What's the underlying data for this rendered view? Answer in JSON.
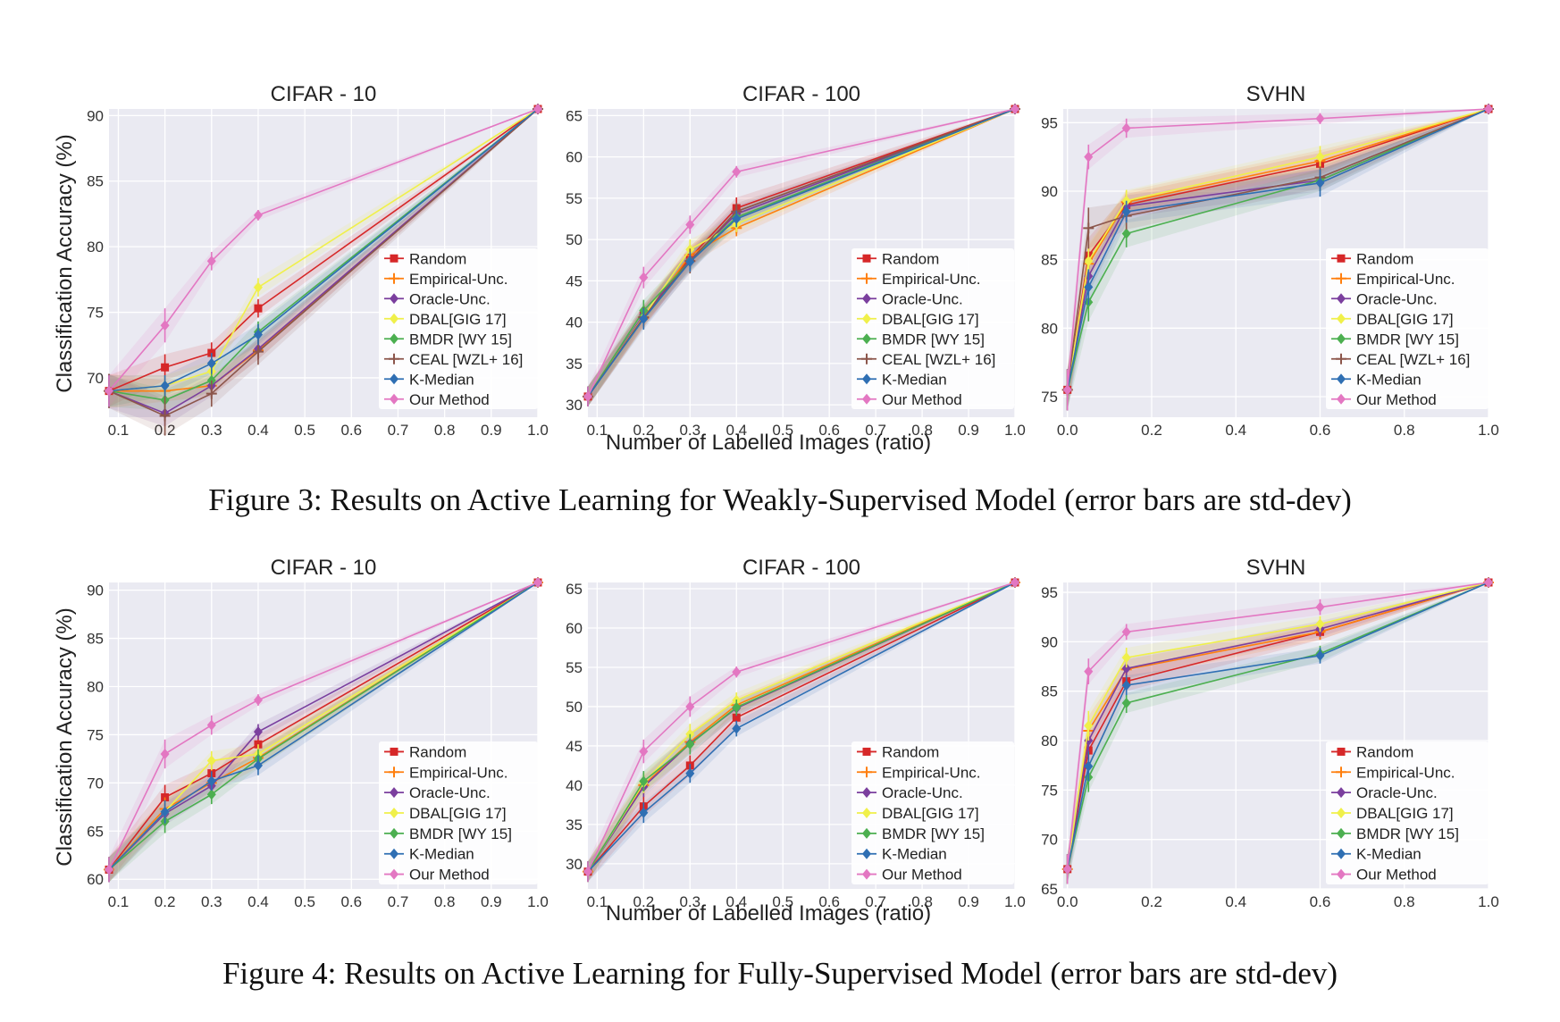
{
  "colors": {
    "Random": "#d62728",
    "Empirical-Unc.": "#ff7f0e",
    "Oracle-Unc.": "#7b3f9e",
    "DBAL[GIG 17]": "#f0f04a",
    "BMDR [WY 15]": "#4caf50",
    "CEAL [WZL+ 16]": "#8c564b",
    "K-Median": "#2f6fb3",
    "Our Method": "#e377c2"
  },
  "figures": [
    {
      "caption": "Figure 3: Results on Active Learning for Weakly-Supervised Model (error bars are std-dev)",
      "ylabel": "Classification Accuracy (%)",
      "xlabel": "Number of Labelled Images (ratio)"
    },
    {
      "caption": "Figure 4: Results on Active Learning for Fully-Supervised Model (error bars are std-dev)",
      "ylabel": "Classification Accuracy (%)",
      "xlabel": "Number of Labelled Images (ratio)"
    }
  ],
  "chart_data": [
    {
      "type": "line",
      "figure": "Figure 3",
      "title": "CIFAR - 10",
      "xlim": [
        0.08,
        1.0
      ],
      "ylim": [
        67,
        90.5
      ],
      "xticks": [
        0.1,
        0.2,
        0.3,
        0.4,
        0.5,
        0.6,
        0.7,
        0.8,
        0.9,
        1.0
      ],
      "yticks": [
        70,
        75,
        80,
        85,
        90
      ],
      "x": [
        0.08,
        0.2,
        0.3,
        0.4,
        1.0
      ],
      "legend": "center-right",
      "series": [
        {
          "name": "Random",
          "values": [
            69,
            70.8,
            71.9,
            75.3,
            90.5
          ],
          "err": [
            1.2,
            1.0,
            0.8,
            0.7,
            0
          ]
        },
        {
          "name": "Empirical-Unc.",
          "values": [
            69,
            69.0,
            69.4,
            72.1,
            90.5
          ],
          "err": [
            1.3,
            0.8,
            0.8,
            0.7,
            0
          ]
        },
        {
          "name": "Oracle-Unc.",
          "values": [
            69,
            67.3,
            69.4,
            72.2,
            90.5
          ],
          "err": [
            1.3,
            1.0,
            0.8,
            0.8,
            0
          ]
        },
        {
          "name": "DBAL[GIG 17]",
          "values": [
            69,
            69.4,
            70.5,
            76.9,
            90.5
          ],
          "err": [
            1.2,
            0.8,
            0.8,
            0.7,
            0
          ]
        },
        {
          "name": "BMDR [WY 15]",
          "values": [
            69,
            68.3,
            69.8,
            73.5,
            90.5
          ],
          "err": [
            1.2,
            0.8,
            0.8,
            0.8,
            0
          ]
        },
        {
          "name": "CEAL [WZL+ 16]",
          "values": [
            69,
            67.1,
            68.8,
            72.0,
            90.5
          ],
          "err": [
            1.3,
            1.5,
            1.0,
            1.0,
            0
          ]
        },
        {
          "name": "K-Median",
          "values": [
            69,
            69.4,
            71.1,
            73.3,
            90.5
          ],
          "err": [
            1.2,
            0.8,
            0.8,
            0.8,
            0
          ]
        },
        {
          "name": "Our Method",
          "values": [
            69,
            74.0,
            78.9,
            82.4,
            90.5
          ],
          "err": [
            1.2,
            1.3,
            0.7,
            0.4,
            0
          ]
        }
      ]
    },
    {
      "type": "line",
      "figure": "Figure 3",
      "title": "CIFAR - 100",
      "xlim": [
        0.08,
        1.0
      ],
      "ylim": [
        28.5,
        65.8
      ],
      "xticks": [
        0.1,
        0.2,
        0.3,
        0.4,
        0.5,
        0.6,
        0.7,
        0.8,
        0.9,
        1.0
      ],
      "yticks": [
        30,
        35,
        40,
        45,
        50,
        55,
        60,
        65
      ],
      "x": [
        0.08,
        0.2,
        0.3,
        0.4,
        1.0
      ],
      "legend": "bottom-right",
      "series": [
        {
          "name": "Random",
          "values": [
            31.0,
            40.8,
            47.8,
            53.8,
            65.8
          ],
          "err": [
            1.2,
            1.3,
            1.3,
            1.3,
            0
          ]
        },
        {
          "name": "Empirical-Unc.",
          "values": [
            31.0,
            40.5,
            48.1,
            51.4,
            65.8
          ],
          "err": [
            1.2,
            1.2,
            1.2,
            1.0,
            0
          ]
        },
        {
          "name": "Oracle-Unc.",
          "values": [
            31.0,
            40.9,
            47.5,
            53.1,
            65.8
          ],
          "err": [
            1.2,
            1.2,
            1.2,
            1.0,
            0
          ]
        },
        {
          "name": "DBAL[GIG 17]",
          "values": [
            31.0,
            40.7,
            48.8,
            51.9,
            65.8
          ],
          "err": [
            1.2,
            1.2,
            1.2,
            1.0,
            0
          ]
        },
        {
          "name": "BMDR [WY 15]",
          "values": [
            31.0,
            41.4,
            47.4,
            52.7,
            65.8
          ],
          "err": [
            1.2,
            1.3,
            1.2,
            1.0,
            0
          ]
        },
        {
          "name": "CEAL [WZL+ 16]",
          "values": [
            31.0,
            40.6,
            47.4,
            53.4,
            65.8
          ],
          "err": [
            1.2,
            1.2,
            1.5,
            1.0,
            0
          ]
        },
        {
          "name": "K-Median",
          "values": [
            31.0,
            40.4,
            47.3,
            52.5,
            65.8
          ],
          "err": [
            1.2,
            1.3,
            1.2,
            1.0,
            0
          ]
        },
        {
          "name": "Our Method",
          "values": [
            31.0,
            45.4,
            51.8,
            58.2,
            65.8
          ],
          "err": [
            1.2,
            1.3,
            1.1,
            0.7,
            0
          ]
        }
      ]
    },
    {
      "type": "line",
      "figure": "Figure 3",
      "title": "SVHN",
      "xlim": [
        -0.01,
        1.0
      ],
      "ylim": [
        73.5,
        96.0
      ],
      "xticks": [
        0.0,
        0.2,
        0.4,
        0.6,
        0.8,
        1.0
      ],
      "yticks": [
        75,
        80,
        85,
        90,
        95
      ],
      "x": [
        0.0,
        0.05,
        0.14,
        0.6,
        1.0
      ],
      "legend": "bottom-right",
      "series": [
        {
          "name": "Random",
          "values": [
            75.5,
            85.3,
            89.0,
            92.0,
            96.0
          ],
          "err": [
            1.5,
            1.3,
            0.8,
            0.8,
            0
          ]
        },
        {
          "name": "Empirical-Unc.",
          "values": [
            75.5,
            84.7,
            89.2,
            92.2,
            96.0
          ],
          "err": [
            1.5,
            1.3,
            0.8,
            0.8,
            0
          ]
        },
        {
          "name": "Oracle-Unc.",
          "values": [
            75.5,
            83.8,
            88.9,
            90.8,
            96.0
          ],
          "err": [
            1.5,
            1.3,
            0.8,
            0.8,
            0
          ]
        },
        {
          "name": "DBAL[GIG 17]",
          "values": [
            75.5,
            84.9,
            89.3,
            92.5,
            96.0
          ],
          "err": [
            1.5,
            1.3,
            0.8,
            0.8,
            0
          ]
        },
        {
          "name": "BMDR [WY 15]",
          "values": [
            75.5,
            81.9,
            86.9,
            90.8,
            96.0
          ],
          "err": [
            1.5,
            1.4,
            1.0,
            0.8,
            0
          ]
        },
        {
          "name": "CEAL [WZL+ 16]",
          "values": [
            75.5,
            87.3,
            88.2,
            91.0,
            96.0
          ],
          "err": [
            1.5,
            1.5,
            1.0,
            0.8,
            0
          ]
        },
        {
          "name": "K-Median",
          "values": [
            75.5,
            83.0,
            88.5,
            90.6,
            96.0
          ],
          "err": [
            1.5,
            1.3,
            0.8,
            1.0,
            0
          ]
        },
        {
          "name": "Our Method",
          "values": [
            75.5,
            92.5,
            94.6,
            95.3,
            96.0
          ],
          "err": [
            1.5,
            0.9,
            0.7,
            0.4,
            0
          ]
        }
      ]
    },
    {
      "type": "line",
      "figure": "Figure 4",
      "title": "CIFAR - 10",
      "xlim": [
        0.08,
        1.0
      ],
      "ylim": [
        59,
        90.8
      ],
      "xticks": [
        0.1,
        0.2,
        0.3,
        0.4,
        0.5,
        0.6,
        0.7,
        0.8,
        0.9,
        1.0
      ],
      "yticks": [
        60,
        65,
        70,
        75,
        80,
        85,
        90
      ],
      "x": [
        0.08,
        0.2,
        0.3,
        0.4,
        1.0
      ],
      "legend": "bottom-right",
      "series": [
        {
          "name": "Random",
          "values": [
            61.0,
            68.5,
            71.0,
            74.0,
            90.8
          ],
          "err": [
            1.3,
            1.3,
            1.0,
            1.0,
            0
          ]
        },
        {
          "name": "Empirical-Unc.",
          "values": [
            61.0,
            67.3,
            70.0,
            72.6,
            90.8
          ],
          "err": [
            1.3,
            1.2,
            1.0,
            1.0,
            0
          ]
        },
        {
          "name": "Oracle-Unc.",
          "values": [
            61.0,
            66.8,
            69.7,
            75.3,
            90.8
          ],
          "err": [
            1.3,
            1.2,
            1.0,
            0.8,
            0
          ]
        },
        {
          "name": "DBAL[GIG 17]",
          "values": [
            61.0,
            67.0,
            72.3,
            73.0,
            90.8
          ],
          "err": [
            1.3,
            1.2,
            1.0,
            1.0,
            0
          ]
        },
        {
          "name": "BMDR [WY 15]",
          "values": [
            61.0,
            66.0,
            68.8,
            72.5,
            90.8
          ],
          "err": [
            1.3,
            1.2,
            1.0,
            1.0,
            0
          ]
        },
        {
          "name": "K-Median",
          "values": [
            61.0,
            67.0,
            70.2,
            71.8,
            90.8
          ],
          "err": [
            1.3,
            1.2,
            1.0,
            1.0,
            0
          ]
        },
        {
          "name": "Our Method",
          "values": [
            61.0,
            73.0,
            76.0,
            78.6,
            90.8
          ],
          "err": [
            1.3,
            1.5,
            1.0,
            0.6,
            0
          ]
        }
      ]
    },
    {
      "type": "line",
      "figure": "Figure 4",
      "title": "CIFAR - 100",
      "xlim": [
        0.08,
        1.0
      ],
      "ylim": [
        26.8,
        65.8
      ],
      "xticks": [
        0.1,
        0.2,
        0.3,
        0.4,
        0.5,
        0.6,
        0.7,
        0.8,
        0.9,
        1.0
      ],
      "yticks": [
        30,
        35,
        40,
        45,
        50,
        55,
        60,
        65
      ],
      "x": [
        0.08,
        0.2,
        0.3,
        0.4,
        1.0
      ],
      "legend": "bottom-right",
      "series": [
        {
          "name": "Random",
          "values": [
            29.0,
            37.3,
            42.5,
            48.6,
            65.8
          ],
          "err": [
            1.3,
            1.3,
            1.3,
            1.2,
            0
          ]
        },
        {
          "name": "Empirical-Unc.",
          "values": [
            29.0,
            40.0,
            45.5,
            50.2,
            65.8
          ],
          "err": [
            1.3,
            1.3,
            1.3,
            1.0,
            0
          ]
        },
        {
          "name": "Oracle-Unc.",
          "values": [
            29.0,
            39.8,
            45.3,
            49.8,
            65.8
          ],
          "err": [
            1.3,
            1.3,
            1.3,
            1.0,
            0
          ]
        },
        {
          "name": "DBAL[GIG 17]",
          "values": [
            29.0,
            40.3,
            46.5,
            50.8,
            65.8
          ],
          "err": [
            1.3,
            1.3,
            1.3,
            1.0,
            0
          ]
        },
        {
          "name": "BMDR [WY 15]",
          "values": [
            29.0,
            40.5,
            45.2,
            49.9,
            65.8
          ],
          "err": [
            1.3,
            1.3,
            1.3,
            1.0,
            0
          ]
        },
        {
          "name": "K-Median",
          "values": [
            29.0,
            36.5,
            41.5,
            47.2,
            65.8
          ],
          "err": [
            1.3,
            1.3,
            1.2,
            1.0,
            0
          ]
        },
        {
          "name": "Our Method",
          "values": [
            29.0,
            44.3,
            50.0,
            54.4,
            65.8
          ],
          "err": [
            1.3,
            1.5,
            1.3,
            0.7,
            0
          ]
        }
      ]
    },
    {
      "type": "line",
      "figure": "Figure 4",
      "title": "SVHN",
      "xlim": [
        -0.01,
        1.0
      ],
      "ylim": [
        65,
        96.0
      ],
      "xticks": [
        0.0,
        0.2,
        0.4,
        0.6,
        0.8,
        1.0
      ],
      "yticks": [
        65,
        70,
        75,
        80,
        85,
        90,
        95
      ],
      "x": [
        0.0,
        0.05,
        0.14,
        0.6,
        1.0
      ],
      "legend": "bottom-right",
      "series": [
        {
          "name": "Random",
          "values": [
            67.0,
            79.0,
            86.0,
            91.0,
            96.0
          ],
          "err": [
            1.5,
            1.5,
            1.0,
            0.8,
            0
          ]
        },
        {
          "name": "Empirical-Unc.",
          "values": [
            67.0,
            81.0,
            87.2,
            91.0,
            96.0
          ],
          "err": [
            1.5,
            1.5,
            1.0,
            0.8,
            0
          ]
        },
        {
          "name": "Oracle-Unc.",
          "values": [
            67.0,
            80.0,
            87.3,
            91.3,
            96.0
          ],
          "err": [
            1.5,
            1.5,
            1.0,
            0.8,
            0
          ]
        },
        {
          "name": "DBAL[GIG 17]",
          "values": [
            67.0,
            81.5,
            88.4,
            91.8,
            96.0
          ],
          "err": [
            1.5,
            1.5,
            1.0,
            0.8,
            0
          ]
        },
        {
          "name": "BMDR [WY 15]",
          "values": [
            67.0,
            76.3,
            83.8,
            88.8,
            96.0
          ],
          "err": [
            1.5,
            1.5,
            1.0,
            0.8,
            0
          ]
        },
        {
          "name": "K-Median",
          "values": [
            67.0,
            77.4,
            85.6,
            88.6,
            96.0
          ],
          "err": [
            1.5,
            1.5,
            1.0,
            0.8,
            0
          ]
        },
        {
          "name": "Our Method",
          "values": [
            67.0,
            87.0,
            91.0,
            93.5,
            96.0
          ],
          "err": [
            1.5,
            1.3,
            0.8,
            0.8,
            0
          ]
        }
      ]
    }
  ]
}
